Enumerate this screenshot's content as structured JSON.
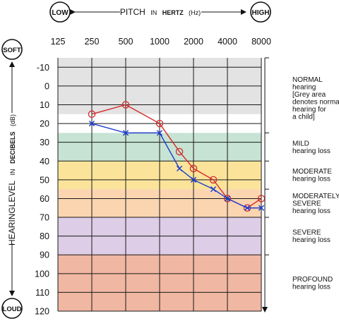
{
  "header": {
    "low_label": "LOW",
    "high_label": "HIGH",
    "pitch_prefix": "PITCH",
    "pitch_in": "IN",
    "pitch_unit": "HERTZ",
    "pitch_abbr": "(Hz)"
  },
  "side": {
    "soft_label": "SOFT",
    "loud_label": "LOUD",
    "level_prefix": "HEARINGLEVEL",
    "level_in": "IN",
    "level_unit": "DECIBELS",
    "level_abbr": "(dB)"
  },
  "chart_data": {
    "type": "line",
    "x_categories": [
      "125",
      "250",
      "500",
      "1000",
      "2000",
      "4000",
      "8000"
    ],
    "x_scale": "log2",
    "y_ticks": [
      "-10",
      "0",
      "10",
      "20",
      "30",
      "40",
      "50",
      "60",
      "70",
      "80",
      "90",
      "100",
      "110",
      "120"
    ],
    "ylim": [
      -15,
      120
    ],
    "y_reversed": true,
    "grid": true,
    "bands": [
      {
        "name": "normal",
        "from": -15,
        "to": 15,
        "color": "#e3e3e3"
      },
      {
        "name": "mild",
        "from": 25,
        "to": 40,
        "color": "#c6e3d3"
      },
      {
        "name": "moderate",
        "from": 40,
        "to": 55,
        "color": "#fbe49a"
      },
      {
        "name": "moderately-severe",
        "from": 55,
        "to": 70,
        "color": "#fad5b0"
      },
      {
        "name": "severe",
        "from": 70,
        "to": 90,
        "color": "#ddcde6"
      },
      {
        "name": "profound",
        "from": 90,
        "to": 120,
        "color": "#f0b7a2"
      }
    ],
    "series": [
      {
        "marker": "circle",
        "color": "#d42a2a",
        "points": [
          {
            "x": 250,
            "y": 15
          },
          {
            "x": 500,
            "y": 10
          },
          {
            "x": 1000,
            "y": 20
          },
          {
            "x": 1500,
            "y": 35
          },
          {
            "x": 2000,
            "y": 44
          },
          {
            "x": 3000,
            "y": 50
          },
          {
            "x": 4000,
            "y": 60
          },
          {
            "x": 6000,
            "y": 65
          },
          {
            "x": 8000,
            "y": 60
          }
        ]
      },
      {
        "marker": "cross",
        "color": "#1f3fd0",
        "points": [
          {
            "x": 250,
            "y": 20
          },
          {
            "x": 500,
            "y": 25
          },
          {
            "x": 1000,
            "y": 25
          },
          {
            "x": 1500,
            "y": 44
          },
          {
            "x": 2000,
            "y": 50
          },
          {
            "x": 3000,
            "y": 55
          },
          {
            "x": 4000,
            "y": 60
          },
          {
            "x": 6000,
            "y": 65
          },
          {
            "x": 8000,
            "y": 65
          }
        ]
      }
    ],
    "categories": [
      {
        "title": "NORMAL",
        "lines": [
          "hearing",
          "[Grey area",
          "denotes normal",
          "hearing for",
          "a child]"
        ],
        "from": -15,
        "to": 25
      },
      {
        "title": "MILD",
        "lines": [
          "hearing loss"
        ],
        "from": 25,
        "to": 40
      },
      {
        "title": "MODERATE",
        "lines": [
          "hearing loss"
        ],
        "from": 40,
        "to": 55
      },
      {
        "title": "MODERATELY",
        "title2": "SEVERE",
        "lines": [
          "hearing loss"
        ],
        "from": 55,
        "to": 70
      },
      {
        "title": "SEVERE",
        "lines": [
          "hearing loss"
        ],
        "from": 70,
        "to": 90
      },
      {
        "title": "PROFOUND",
        "lines": [
          "hearing loss"
        ],
        "from": 90,
        "to": 120
      }
    ]
  }
}
